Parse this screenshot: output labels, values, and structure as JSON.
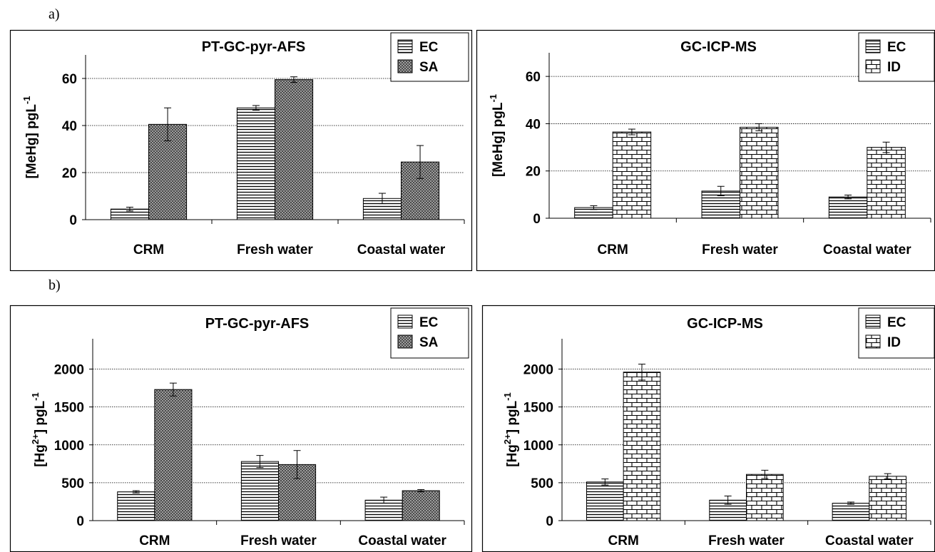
{
  "panels": {
    "a": "a)",
    "b": "b)"
  },
  "patterns": {
    "EC": "horizontal-lines",
    "SA": "crosshatch",
    "ID": "brick"
  },
  "colors": {
    "ink": "#000000",
    "grid": "#000000",
    "background": "#ffffff"
  },
  "chart_data": [
    {
      "type": "bar",
      "title": "PT-GC-pyr-AFS",
      "ylabel": "[MeHg] pgL",
      "ylabel_sup": "-1",
      "categories": [
        "CRM",
        "Fresh water",
        "Coastal water"
      ],
      "ylim": [
        0,
        70
      ],
      "yticks": [
        0,
        20,
        40,
        60
      ],
      "grid": true,
      "legend": "top-right",
      "series": [
        {
          "name": "EC",
          "pattern": "horizontal-lines",
          "values": [
            4.5,
            47.5,
            9
          ],
          "errors": [
            0.8,
            1,
            2.2
          ]
        },
        {
          "name": "SA",
          "pattern": "crosshatch",
          "values": [
            40.5,
            59.5,
            24.5
          ],
          "errors": [
            7,
            1.2,
            7
          ]
        }
      ]
    },
    {
      "type": "bar",
      "title": "GC-ICP-MS",
      "ylabel": "[MeHg] pgL",
      "ylabel_sup": "-1",
      "categories": [
        "CRM",
        "Fresh water",
        "Coastal water"
      ],
      "ylim": [
        0,
        70
      ],
      "yticks": [
        0,
        20,
        40,
        60
      ],
      "grid": true,
      "legend": "top-right",
      "series": [
        {
          "name": "EC",
          "pattern": "horizontal-lines",
          "values": [
            4.5,
            11.5,
            9
          ],
          "errors": [
            0.8,
            2,
            0.8
          ]
        },
        {
          "name": "ID",
          "pattern": "brick",
          "values": [
            36.5,
            38.5,
            30
          ],
          "errors": [
            1.2,
            1.5,
            2.2
          ]
        }
      ]
    },
    {
      "type": "bar",
      "title": "PT-GC-pyr-AFS",
      "ylabel": "[Hg",
      "ylabel_sup": "2+",
      "ylabel_tail": "] pgL",
      "ylabel_sup2": "-1",
      "categories": [
        "CRM",
        "Fresh water",
        "Coastal water"
      ],
      "ylim": [
        0,
        2400
      ],
      "yticks": [
        0,
        500,
        1000,
        1500,
        2000
      ],
      "grid": true,
      "legend": "top-right",
      "series": [
        {
          "name": "EC",
          "pattern": "horizontal-lines",
          "values": [
            380,
            780,
            270
          ],
          "errors": [
            15,
            80,
            40
          ]
        },
        {
          "name": "SA",
          "pattern": "crosshatch",
          "values": [
            1730,
            740,
            395
          ],
          "errors": [
            85,
            185,
            15
          ]
        }
      ]
    },
    {
      "type": "bar",
      "title": "GC-ICP-MS",
      "ylabel": "[Hg",
      "ylabel_sup": "2+",
      "ylabel_tail": "] pgL",
      "ylabel_sup2": "-1",
      "categories": [
        "CRM",
        "Fresh water",
        "Coastal water"
      ],
      "ylim": [
        0,
        2400
      ],
      "yticks": [
        0,
        500,
        1000,
        1500,
        2000
      ],
      "grid": true,
      "legend": "top-right",
      "series": [
        {
          "name": "EC",
          "pattern": "horizontal-lines",
          "values": [
            510,
            270,
            230
          ],
          "errors": [
            40,
            55,
            15
          ]
        },
        {
          "name": "ID",
          "pattern": "brick",
          "values": [
            1960,
            610,
            585
          ],
          "errors": [
            105,
            55,
            35
          ]
        }
      ]
    }
  ]
}
